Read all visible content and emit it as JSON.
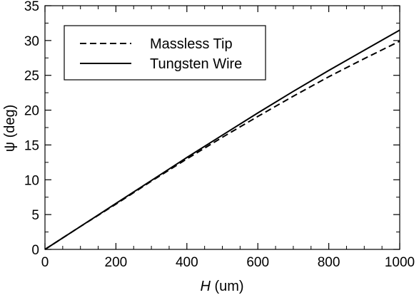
{
  "chart_data": {
    "type": "line",
    "title": "",
    "xlabel_italic": "H",
    "xlabel_rest": " (um)",
    "ylabel": "ψ (deg)",
    "xlim": [
      0,
      1000
    ],
    "ylim": [
      0,
      35
    ],
    "x_ticks": [
      0,
      200,
      400,
      600,
      800,
      1000
    ],
    "y_ticks": [
      0,
      5,
      10,
      15,
      20,
      25,
      30,
      35
    ],
    "x_minor_step": 50,
    "y_minor_step": 2.5,
    "grid": false,
    "legend_position": "top-left",
    "series": [
      {
        "name": "Massless Tip",
        "style": "dashed",
        "color": "#000000",
        "x": [
          0,
          100,
          200,
          300,
          400,
          500,
          600,
          700,
          800,
          900,
          1000
        ],
        "y": [
          0,
          3.3,
          6.5,
          9.8,
          13.0,
          16.1,
          19.1,
          22.0,
          24.8,
          27.4,
          29.9
        ]
      },
      {
        "name": "Tungsten Wire",
        "style": "solid",
        "color": "#000000",
        "x": [
          0,
          100,
          200,
          300,
          400,
          500,
          600,
          700,
          800,
          900,
          1000
        ],
        "y": [
          0,
          3.3,
          6.6,
          9.9,
          13.2,
          16.4,
          19.6,
          22.7,
          25.7,
          28.6,
          31.5
        ]
      }
    ]
  }
}
